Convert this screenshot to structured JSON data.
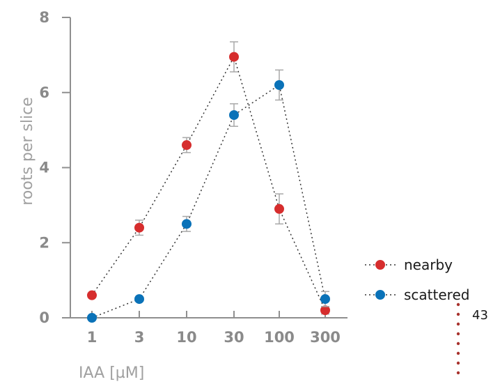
{
  "chart_data": {
    "type": "scatter",
    "categories": [
      "1",
      "3",
      "10",
      "30",
      "100",
      "300"
    ],
    "xlabel": "IAA [µM]",
    "ylabel": "roots per slice",
    "ylim": [
      0,
      8
    ],
    "yticks": [
      "0",
      "2",
      "4",
      "6",
      "8"
    ],
    "grid": false,
    "legend_position": "bottom-right",
    "series": [
      {
        "name": "nearby",
        "color": "#d62d2d",
        "values": [
          0.6,
          2.4,
          4.6,
          6.95,
          2.9,
          0.2
        ],
        "errors": [
          0,
          0.2,
          0.2,
          0.4,
          0.4,
          0.1
        ]
      },
      {
        "name": "scattered",
        "color": "#0a72b8",
        "values": [
          0.0,
          0.5,
          2.5,
          5.4,
          6.2,
          0.5
        ],
        "errors": [
          0,
          0,
          0.2,
          0.3,
          0.4,
          0.2
        ]
      }
    ],
    "annotation": "43",
    "annotation_color": "#a8322d"
  }
}
